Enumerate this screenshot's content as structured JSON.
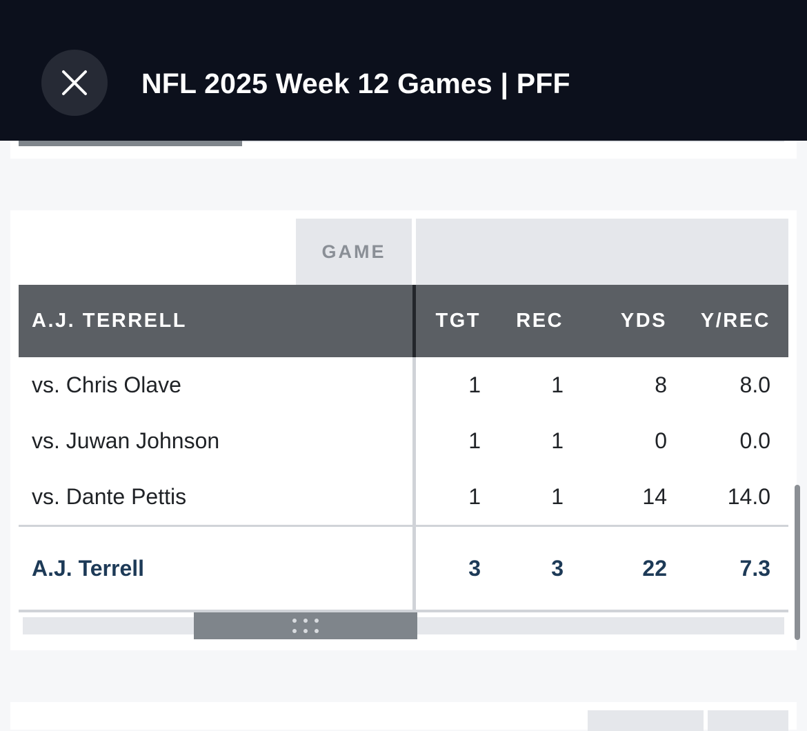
{
  "header": {
    "title": "NFL 2025 Week 12 Games | PFF",
    "close_icon": "close-icon"
  },
  "table": {
    "group_label": "GAME",
    "columns": {
      "name": "A.J. TERRELL",
      "tgt": "TGT",
      "rec": "REC",
      "yds": "YDS",
      "yrec": "Y/REC"
    },
    "rows": [
      {
        "name": "vs. Chris Olave",
        "tgt": "1",
        "rec": "1",
        "yds": "8",
        "yrec": "8.0"
      },
      {
        "name": "vs. Juwan Johnson",
        "tgt": "1",
        "rec": "1",
        "yds": "0",
        "yrec": "0.0"
      },
      {
        "name": "vs. Dante Pettis",
        "tgt": "1",
        "rec": "1",
        "yds": "14",
        "yrec": "14.0"
      }
    ],
    "total": {
      "name": "A.J. Terrell",
      "tgt": "3",
      "rec": "3",
      "yds": "22",
      "yrec": "7.3"
    }
  },
  "colors": {
    "header_bg": "#0c101c",
    "table_header_bg": "#5b5f64",
    "total_text": "#1d3a57"
  }
}
